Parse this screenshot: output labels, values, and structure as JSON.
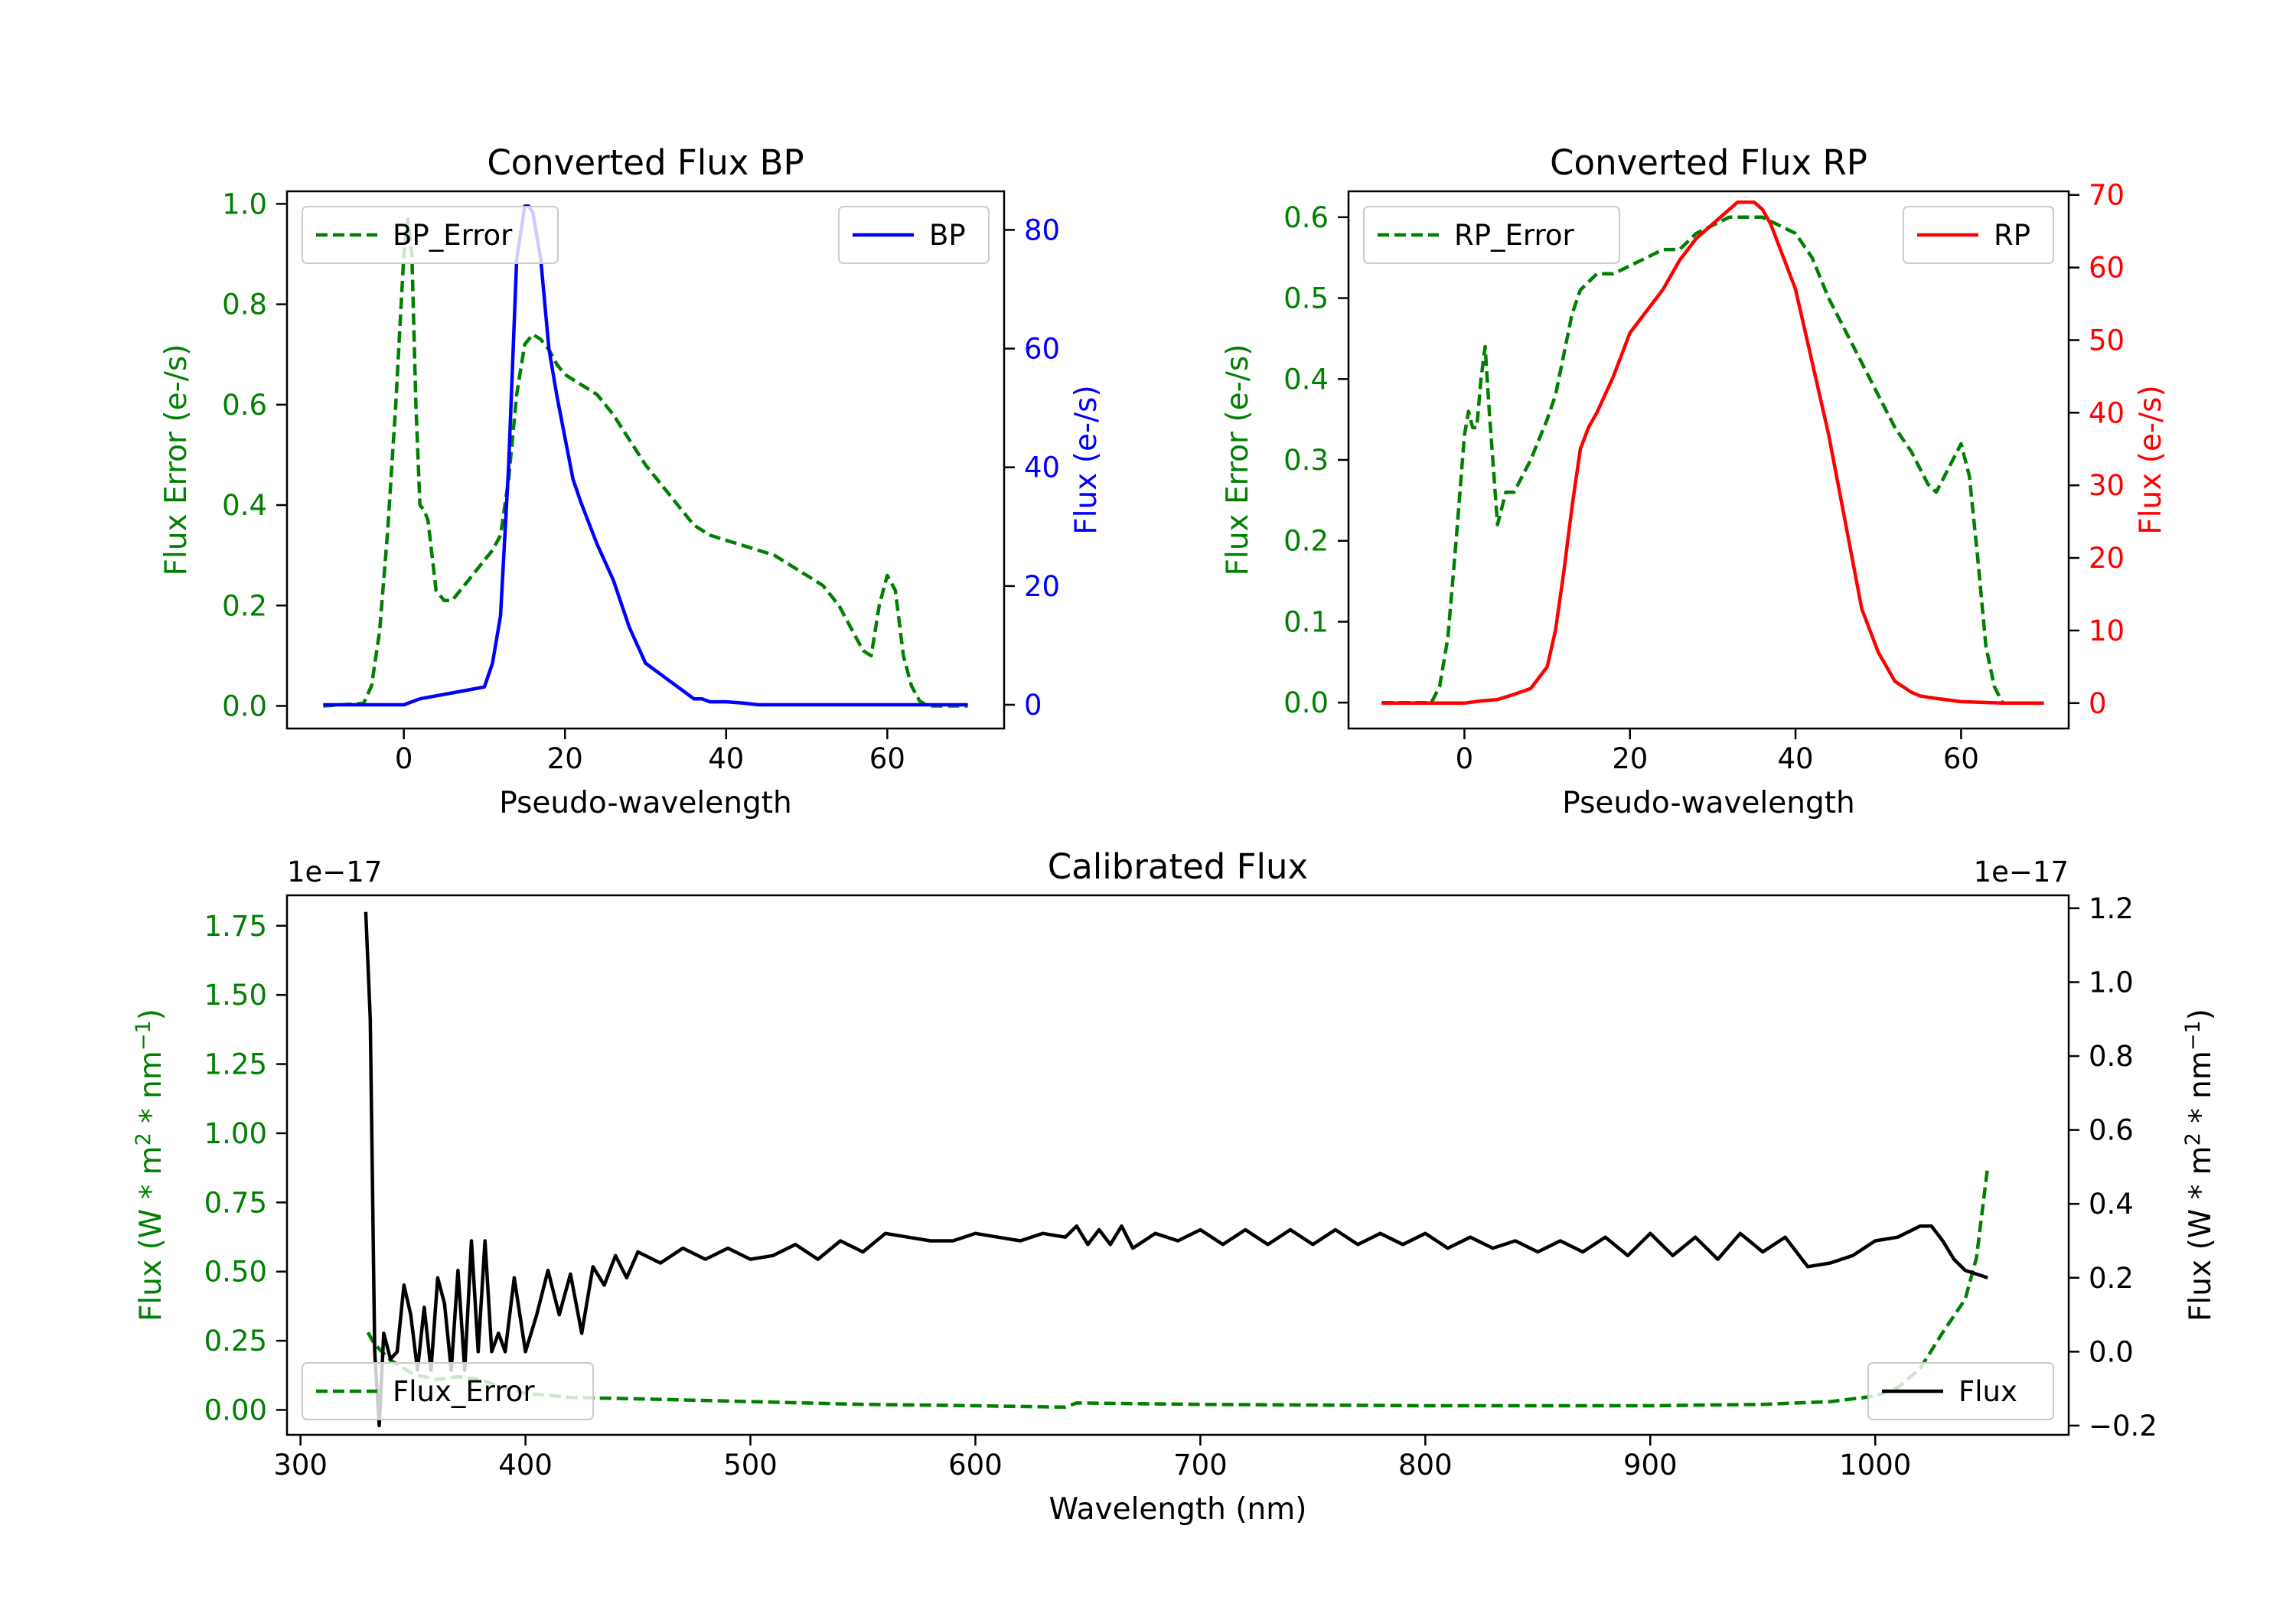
{
  "chart_data": [
    {
      "id": "bp",
      "type": "line",
      "title": "Converted Flux BP",
      "xlabel": "Pseudo-wavelength",
      "ylabel_left": "Flux Error (e-/s)",
      "ylabel_right": "Flux (e-/s)",
      "xlim": [
        -14.5,
        74.5
      ],
      "ylim_left": [
        -0.045,
        1.025
      ],
      "ylim_right": [
        -4.0,
        86.5
      ],
      "xticks": [
        0,
        20,
        40,
        60
      ],
      "yticks_left": [
        0.0,
        0.2,
        0.4,
        0.6,
        0.8,
        1.0
      ],
      "yticks_right": [
        0,
        20,
        40,
        60,
        80
      ],
      "xtick_labels": [
        "0",
        "20",
        "40",
        "60"
      ],
      "ytick_labels_left": [
        "0.0",
        "0.2",
        "0.4",
        "0.6",
        "0.8",
        "1.0"
      ],
      "ytick_labels_right": [
        "0",
        "20",
        "40",
        "60",
        "80"
      ],
      "legend_left_placement": "upper-left",
      "legend_right_placement": "upper-right",
      "series": [
        {
          "name": "BP_Error",
          "axis": "left",
          "color": "#008000",
          "style": "dashed",
          "x": [
            -10,
            -5,
            -4,
            -3,
            -2,
            -1,
            0,
            0.5,
            1,
            1.5,
            2,
            2.5,
            3,
            3.5,
            4,
            5,
            6,
            7,
            8,
            9,
            10,
            11,
            12,
            13,
            14,
            15,
            16,
            17,
            18,
            19,
            20,
            22,
            24,
            26,
            28,
            30,
            32,
            34,
            36,
            38,
            40,
            42,
            44,
            46,
            48,
            50,
            52,
            54,
            56,
            57,
            58,
            59,
            60,
            61,
            62,
            63,
            64,
            65,
            70
          ],
          "y": [
            0.0,
            0.005,
            0.04,
            0.15,
            0.35,
            0.6,
            0.9,
            0.97,
            0.9,
            0.6,
            0.4,
            0.39,
            0.37,
            0.3,
            0.23,
            0.21,
            0.21,
            0.23,
            0.25,
            0.27,
            0.29,
            0.31,
            0.34,
            0.45,
            0.62,
            0.72,
            0.74,
            0.73,
            0.71,
            0.68,
            0.66,
            0.64,
            0.62,
            0.58,
            0.53,
            0.48,
            0.44,
            0.4,
            0.36,
            0.34,
            0.33,
            0.32,
            0.31,
            0.3,
            0.28,
            0.26,
            0.24,
            0.2,
            0.14,
            0.11,
            0.1,
            0.2,
            0.26,
            0.23,
            0.1,
            0.04,
            0.01,
            0.0,
            0.0
          ]
        },
        {
          "name": "BP",
          "axis": "right",
          "color": "#0000ff",
          "style": "solid",
          "x": [
            -10,
            -5,
            -2,
            0,
            2,
            4,
            6,
            8,
            10,
            11,
            12,
            13,
            14,
            15,
            15.5,
            16,
            17,
            18,
            19,
            20,
            21,
            22,
            24,
            26,
            28,
            30,
            32,
            34,
            36,
            37,
            38,
            40,
            42,
            44,
            46,
            50,
            55,
            60,
            65,
            70
          ],
          "y": [
            0.0,
            0.0,
            0.0,
            0.0,
            1,
            1.5,
            2,
            2.5,
            3,
            7,
            15,
            40,
            75,
            84,
            84,
            83,
            75,
            60,
            52,
            45,
            38,
            34,
            27,
            21,
            13,
            7,
            5,
            3,
            1,
            1,
            0.5,
            0.5,
            0.3,
            0,
            0,
            0,
            0,
            0,
            0,
            0
          ]
        }
      ]
    },
    {
      "id": "rp",
      "type": "line",
      "title": "Converted Flux RP",
      "xlabel": "Pseudo-wavelength",
      "ylabel_left": "Flux Error (e-/s)",
      "ylabel_right": "Flux (e-/s)",
      "xlim": [
        -14.0,
        73.0
      ],
      "ylim_left": [
        -0.032,
        0.632
      ],
      "ylim_right": [
        -3.5,
        70.5
      ],
      "xticks": [
        0,
        20,
        40,
        60
      ],
      "yticks_left": [
        0.0,
        0.1,
        0.2,
        0.3,
        0.4,
        0.5,
        0.6
      ],
      "yticks_right": [
        0,
        10,
        20,
        30,
        40,
        50,
        60,
        70
      ],
      "xtick_labels": [
        "0",
        "20",
        "40",
        "60"
      ],
      "ytick_labels_left": [
        "0.0",
        "0.1",
        "0.2",
        "0.3",
        "0.4",
        "0.5",
        "0.6"
      ],
      "ytick_labels_right": [
        "0",
        "10",
        "20",
        "30",
        "40",
        "50",
        "60",
        "70"
      ],
      "legend_left_placement": "upper-left",
      "legend_right_placement": "upper-right",
      "series": [
        {
          "name": "RP_Error",
          "axis": "left",
          "color": "#008000",
          "style": "dashed",
          "x": [
            -10,
            -4,
            -3,
            -2,
            -1,
            0,
            0.5,
            1,
            1.5,
            2,
            2.5,
            3,
            4,
            5,
            6,
            7,
            8,
            10,
            11,
            12,
            13,
            14,
            16,
            18,
            20,
            22,
            24,
            26,
            28,
            30,
            32,
            34,
            36,
            38,
            40,
            42,
            44,
            46,
            48,
            50,
            52,
            54,
            55,
            56,
            57,
            58,
            59,
            60,
            61,
            62,
            63,
            64,
            65
          ],
          "y": [
            0.0,
            0.0,
            0.02,
            0.08,
            0.2,
            0.33,
            0.36,
            0.34,
            0.34,
            0.4,
            0.44,
            0.36,
            0.22,
            0.26,
            0.26,
            0.28,
            0.3,
            0.35,
            0.38,
            0.43,
            0.48,
            0.51,
            0.53,
            0.53,
            0.54,
            0.55,
            0.56,
            0.56,
            0.58,
            0.59,
            0.6,
            0.6,
            0.6,
            0.59,
            0.58,
            0.55,
            0.5,
            0.46,
            0.42,
            0.38,
            0.34,
            0.31,
            0.29,
            0.27,
            0.26,
            0.28,
            0.3,
            0.32,
            0.28,
            0.18,
            0.07,
            0.02,
            0.0
          ]
        },
        {
          "name": "RP",
          "axis": "right",
          "color": "#ff0000",
          "style": "solid",
          "x": [
            -10,
            -5,
            0,
            2,
            4,
            6,
            8,
            10,
            11,
            12,
            13,
            14,
            15,
            16,
            18,
            20,
            22,
            24,
            26,
            28,
            30,
            32,
            33,
            34,
            35,
            36,
            37,
            38,
            39,
            40,
            41,
            42,
            44,
            46,
            48,
            50,
            52,
            54,
            55,
            56,
            58,
            60,
            65,
            70
          ],
          "y": [
            0.0,
            0.0,
            0.0,
            0.3,
            0.5,
            1.2,
            2,
            5,
            10,
            18,
            27,
            35,
            38,
            40,
            45,
            51,
            54,
            57,
            61,
            64,
            66,
            68,
            69,
            69,
            69,
            68,
            66,
            63,
            60,
            57,
            52,
            47,
            37,
            25,
            13,
            7,
            3,
            1.5,
            1,
            0.8,
            0.5,
            0.2,
            0,
            0
          ]
        }
      ]
    },
    {
      "id": "calibrated",
      "type": "line",
      "title": "Calibrated Flux",
      "xlabel": "Wavelength (nm)",
      "ylabel_left": "Flux (W * m2 * nm-1)",
      "ylabel_right": "Flux (W * m2 * nm-1)",
      "offset_left": "1e−17",
      "offset_right": "1e−17",
      "xlim": [
        294,
        1086
      ],
      "ylim_left": [
        -0.09,
        1.86
      ],
      "ylim_right": [
        -0.225,
        1.235
      ],
      "xticks": [
        300,
        400,
        500,
        600,
        700,
        800,
        900,
        1000
      ],
      "yticks_left": [
        0.0,
        0.25,
        0.5,
        0.75,
        1.0,
        1.25,
        1.5,
        1.75
      ],
      "yticks_right": [
        -0.2,
        0.0,
        0.2,
        0.4,
        0.6,
        0.8,
        1.0,
        1.2
      ],
      "xtick_labels": [
        "300",
        "400",
        "500",
        "600",
        "700",
        "800",
        "900",
        "1000"
      ],
      "ytick_labels_left": [
        "0.00",
        "0.25",
        "0.50",
        "0.75",
        "1.00",
        "1.25",
        "1.50",
        "1.75"
      ],
      "ytick_labels_right": [
        "−0.2",
        "0.0",
        "0.2",
        "0.4",
        "0.6",
        "0.8",
        "1.0",
        "1.2"
      ],
      "legend_left_placement": "lower-left",
      "legend_right_placement": "lower-right",
      "series": [
        {
          "name": "Flux_Error",
          "axis": "left",
          "color": "#008000",
          "style": "dashed",
          "x": [
            330,
            332,
            335,
            340,
            350,
            360,
            370,
            380,
            390,
            400,
            420,
            450,
            500,
            550,
            600,
            640,
            645,
            700,
            800,
            900,
            950,
            980,
            1000,
            1010,
            1020,
            1030,
            1040,
            1045,
            1050
          ],
          "y": [
            0.28,
            0.25,
            0.22,
            0.18,
            0.13,
            0.11,
            0.12,
            0.11,
            0.08,
            0.06,
            0.045,
            0.04,
            0.03,
            0.02,
            0.015,
            0.01,
            0.025,
            0.02,
            0.015,
            0.015,
            0.02,
            0.03,
            0.05,
            0.08,
            0.15,
            0.28,
            0.4,
            0.55,
            0.88
          ]
        },
        {
          "name": "Flux",
          "axis": "right",
          "color": "#000000",
          "style": "solid",
          "x": [
            329,
            331,
            333,
            335,
            337,
            340,
            343,
            346,
            349,
            352,
            355,
            358,
            361,
            364,
            367,
            370,
            373,
            376,
            379,
            382,
            385,
            388,
            391,
            395,
            400,
            405,
            410,
            415,
            420,
            425,
            430,
            435,
            440,
            445,
            450,
            460,
            470,
            480,
            490,
            500,
            510,
            520,
            530,
            540,
            550,
            560,
            570,
            580,
            590,
            600,
            610,
            620,
            630,
            640,
            645,
            650,
            655,
            660,
            665,
            670,
            680,
            690,
            700,
            710,
            720,
            730,
            740,
            750,
            760,
            770,
            780,
            790,
            800,
            810,
            820,
            830,
            840,
            850,
            860,
            870,
            880,
            890,
            900,
            910,
            920,
            930,
            940,
            950,
            960,
            970,
            980,
            990,
            1000,
            1010,
            1020,
            1025,
            1030,
            1035,
            1040,
            1045,
            1050
          ],
          "y": [
            1.19,
            0.9,
            0.0,
            -0.2,
            0.05,
            -0.02,
            0.0,
            0.18,
            0.1,
            -0.05,
            0.12,
            -0.05,
            0.2,
            0.13,
            -0.05,
            0.22,
            -0.05,
            0.3,
            0.0,
            0.3,
            0.0,
            0.05,
            0.0,
            0.2,
            0.0,
            0.1,
            0.22,
            0.1,
            0.21,
            0.05,
            0.23,
            0.18,
            0.26,
            0.2,
            0.27,
            0.24,
            0.28,
            0.25,
            0.28,
            0.25,
            0.26,
            0.29,
            0.25,
            0.3,
            0.27,
            0.32,
            0.31,
            0.3,
            0.3,
            0.32,
            0.31,
            0.3,
            0.32,
            0.31,
            0.34,
            0.29,
            0.33,
            0.29,
            0.34,
            0.28,
            0.32,
            0.3,
            0.33,
            0.29,
            0.33,
            0.29,
            0.33,
            0.29,
            0.33,
            0.29,
            0.32,
            0.29,
            0.32,
            0.28,
            0.31,
            0.28,
            0.3,
            0.27,
            0.3,
            0.27,
            0.31,
            0.26,
            0.32,
            0.26,
            0.31,
            0.25,
            0.32,
            0.27,
            0.31,
            0.23,
            0.24,
            0.26,
            0.3,
            0.31,
            0.34,
            0.34,
            0.3,
            0.25,
            0.22,
            0.21,
            0.2
          ]
        }
      ]
    }
  ]
}
